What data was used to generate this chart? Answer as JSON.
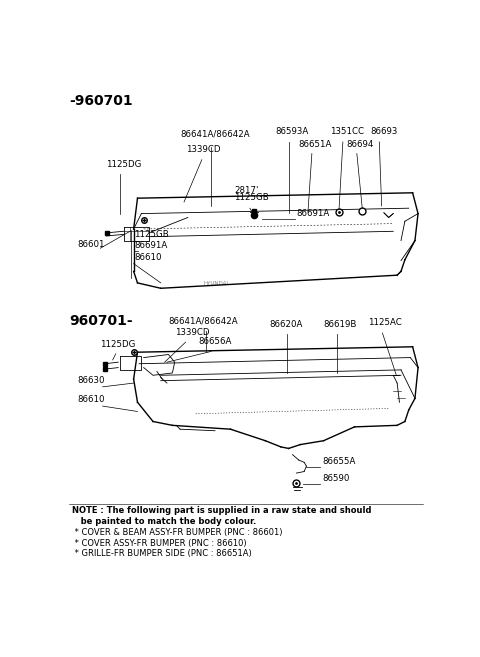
{
  "background_color": "#ffffff",
  "section1_label": "-960701",
  "section2_label": "960701-",
  "note_lines": [
    "NOTE : The following part is supplied in a raw state and should",
    "   be painted to match the body colour.",
    " * COVER & BEAM ASSY-FR BUMPER (PNC : 86601)",
    " * COVER ASSY-FR BUMPER (PNC : 86610)",
    " * GRILLE-FR BUMPER SIDE (PNC : 86651A)"
  ]
}
